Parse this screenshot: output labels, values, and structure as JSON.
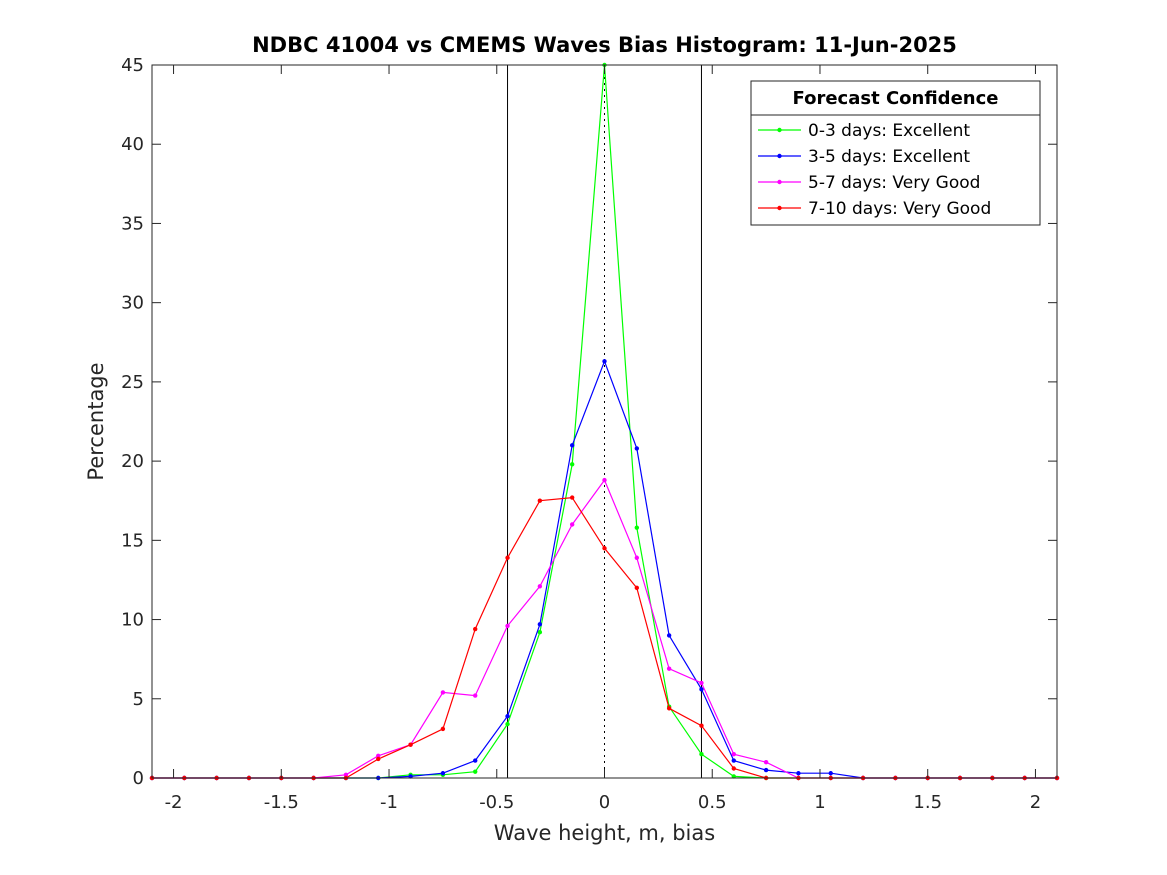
{
  "chart_data": {
    "type": "line",
    "title": "NDBC 41004 vs CMEMS Waves Bias Histogram: 11-Jun-2025",
    "xlabel": "Wave height, m, bias",
    "ylabel": "Percentage",
    "xlim": [
      -2.1,
      2.1
    ],
    "ylim": [
      0,
      45
    ],
    "xticks": [
      -2,
      -1.5,
      -1,
      -0.5,
      0,
      0.5,
      1,
      1.5,
      2
    ],
    "xtick_labels": [
      "-2",
      "-1.5",
      "-1",
      "-0.5",
      "0",
      "0.5",
      "1",
      "1.5",
      "2"
    ],
    "yticks": [
      0,
      5,
      10,
      15,
      20,
      25,
      30,
      35,
      40,
      45
    ],
    "ytick_labels": [
      "0",
      "5",
      "10",
      "15",
      "20",
      "25",
      "30",
      "35",
      "40",
      "45"
    ],
    "grid": false,
    "vertical_lines": [
      {
        "x": -0.45,
        "style": "solid",
        "color": "#000000"
      },
      {
        "x": 0.45,
        "style": "solid",
        "color": "#000000"
      },
      {
        "x": 0,
        "style": "dotted",
        "color": "#000000"
      }
    ],
    "legend": {
      "title": "Forecast Confidence",
      "placement": "top-right"
    },
    "x": [
      -2.1,
      -1.95,
      -1.8,
      -1.65,
      -1.5,
      -1.35,
      -1.2,
      -1.05,
      -0.9,
      -0.75,
      -0.6,
      -0.45,
      -0.3,
      -0.15,
      0,
      0.15,
      0.3,
      0.45,
      0.6,
      0.75,
      0.9,
      1.05,
      1.2,
      1.35,
      1.5,
      1.65,
      1.8,
      1.95,
      2.1
    ],
    "series": [
      {
        "name": "0-3 days: Excellent",
        "color": "#00ff00",
        "values": [
          0,
          0,
          0,
          0,
          0,
          0,
          0,
          0,
          0.2,
          0.2,
          0.4,
          3.4,
          9.2,
          19.8,
          45,
          15.8,
          4.5,
          1.5,
          0.1,
          0,
          0,
          0,
          0,
          0,
          0,
          0,
          0,
          0,
          0
        ]
      },
      {
        "name": "3-5 days: Excellent",
        "color": "#0000ff",
        "values": [
          0,
          0,
          0,
          0,
          0,
          0,
          0,
          0,
          0.1,
          0.3,
          1.1,
          3.9,
          9.7,
          21,
          26.3,
          20.8,
          9,
          5.6,
          1.1,
          0.5,
          0.3,
          0.3,
          0,
          0,
          0,
          0,
          0,
          0,
          0
        ]
      },
      {
        "name": "5-7 days: Very Good",
        "color": "#ff00ff",
        "values": [
          0,
          0,
          0,
          0,
          0,
          0,
          0.2,
          1.4,
          2.1,
          5.4,
          5.2,
          9.6,
          12.1,
          16,
          18.8,
          13.9,
          6.9,
          6,
          1.5,
          1,
          0,
          0,
          0,
          0,
          0,
          0,
          0,
          0,
          0
        ]
      },
      {
        "name": "7-10 days: Very Good",
        "color": "#ff0000",
        "values": [
          0,
          0,
          0,
          0,
          0,
          0,
          0,
          1.2,
          2.1,
          3.1,
          9.4,
          13.9,
          17.5,
          17.7,
          14.5,
          12,
          4.4,
          3.3,
          0.6,
          0,
          0,
          0,
          0,
          0,
          0,
          0,
          0,
          0,
          0
        ]
      }
    ]
  }
}
